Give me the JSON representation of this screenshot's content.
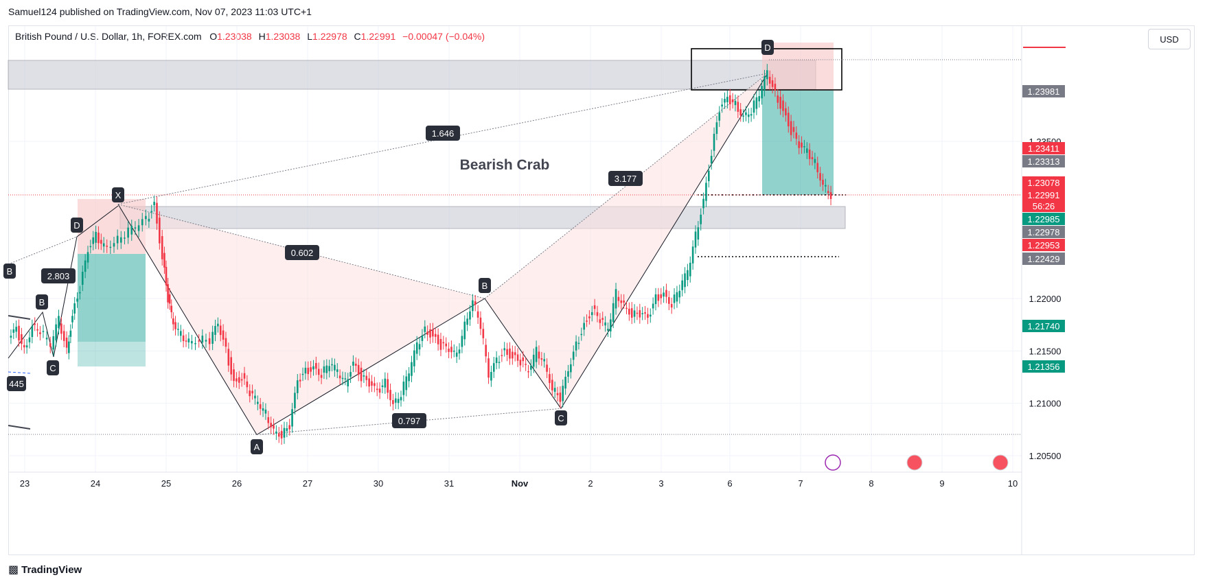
{
  "header": {
    "published": "Samuel124 published on TradingView.com, Nov 07, 2023 11:03 UTC+1"
  },
  "symbol_line": {
    "title": "British Pound / U.S. Dollar, 1h, FOREX.com",
    "o_label": "O",
    "o_value": "1.23038",
    "h_label": "H",
    "h_value": "1.23038",
    "l_label": "L",
    "l_value": "1.22978",
    "c_label": "C",
    "c_value": "1.22991",
    "change": "−0.00047 (−0.04%)"
  },
  "currency_button": "USD",
  "footer": {
    "brand": "TradingView"
  },
  "colors": {
    "up": "#089981",
    "down": "#f23645",
    "pattern": "#fde0e0",
    "zone": "#d1d4dc"
  },
  "chart_data": {
    "type": "candlestick",
    "title": "Bearish Crab",
    "y_range": [
      1.2,
      1.25
    ],
    "y_ticks": [
      "1.20500",
      "1.21000",
      "1.21500",
      "1.22000",
      "1.23500"
    ],
    "x_tick_labels": [
      "23",
      "24",
      "25",
      "26",
      "27",
      "30",
      "31",
      "Nov",
      "2",
      "3",
      "6",
      "7",
      "8",
      "9",
      "10"
    ],
    "price_labels": [
      {
        "text": "1.23981",
        "value": 1.23981,
        "color": "#787b86"
      },
      {
        "text": "1.23411",
        "value": 1.23411,
        "color": "#f23645"
      },
      {
        "text": "1.23313",
        "value": 1.23313,
        "color": "#787b86"
      },
      {
        "text": "1.23078",
        "value": 1.23078,
        "color": "#f23645"
      },
      {
        "text": "1.22991",
        "value": 1.22991,
        "color": "#f23645"
      },
      {
        "text": "1.22985",
        "value": 1.22985,
        "color": "#089981"
      },
      {
        "text": "1.22978",
        "value": 1.22978,
        "color": "#787b86"
      },
      {
        "text": "1.22953",
        "value": 1.22953,
        "color": "#f23645"
      },
      {
        "text": "1.22429",
        "value": 1.22429,
        "color": "#787b86"
      },
      {
        "text": "1.21740",
        "value": 1.2174,
        "color": "#089981"
      },
      {
        "text": "1.21356",
        "value": 1.21356,
        "color": "#089981"
      }
    ],
    "countdown": "56:26",
    "pattern_points": [
      {
        "label": "X",
        "day": "24",
        "price": 1.229
      },
      {
        "label": "A",
        "day": "26",
        "price": 1.207
      },
      {
        "label": "B",
        "day": "31",
        "price": 1.22
      },
      {
        "label": "C",
        "day": "Nov",
        "price": 1.2095
      },
      {
        "label": "D",
        "day": "6",
        "price": 1.2415
      }
    ],
    "ratios": [
      "1.646",
      "0.602",
      "3.177",
      "0.797",
      "2.803"
    ],
    "left_pattern_labels": [
      "D",
      "B",
      "C",
      "B",
      "445"
    ],
    "price_path": [
      [
        0,
        1.216
      ],
      [
        6,
        1.217
      ],
      [
        12,
        1.215
      ],
      [
        18,
        1.2175
      ],
      [
        24,
        1.217
      ],
      [
        32,
        1.2155
      ],
      [
        38,
        1.218
      ],
      [
        44,
        1.215
      ],
      [
        48,
        1.2185
      ],
      [
        54,
        1.221
      ],
      [
        60,
        1.2245
      ],
      [
        66,
        1.226
      ],
      [
        72,
        1.225
      ],
      [
        80,
        1.2255
      ],
      [
        88,
        1.2262
      ],
      [
        96,
        1.2268
      ],
      [
        104,
        1.2275
      ],
      [
        110,
        1.229
      ],
      [
        116,
        1.224
      ],
      [
        120,
        1.22
      ],
      [
        124,
        1.2175
      ],
      [
        130,
        1.2165
      ],
      [
        136,
        1.216
      ],
      [
        144,
        1.2162
      ],
      [
        152,
        1.216
      ],
      [
        158,
        1.2175
      ],
      [
        164,
        1.215
      ],
      [
        170,
        1.212
      ],
      [
        176,
        1.2125
      ],
      [
        182,
        1.211
      ],
      [
        188,
        1.21
      ],
      [
        194,
        1.209
      ],
      [
        200,
        1.2075
      ],
      [
        206,
        1.207
      ],
      [
        212,
        1.2078
      ],
      [
        218,
        1.212
      ],
      [
        224,
        1.213
      ],
      [
        230,
        1.2135
      ],
      [
        236,
        1.2128
      ],
      [
        242,
        1.2138
      ],
      [
        248,
        1.213
      ],
      [
        254,
        1.212
      ],
      [
        260,
        1.214
      ],
      [
        266,
        1.2125
      ],
      [
        272,
        1.2118
      ],
      [
        278,
        1.211
      ],
      [
        284,
        1.212
      ],
      [
        290,
        1.21
      ],
      [
        296,
        1.211
      ],
      [
        302,
        1.213
      ],
      [
        308,
        1.2155
      ],
      [
        314,
        1.217
      ],
      [
        320,
        1.2165
      ],
      [
        326,
        1.2155
      ],
      [
        332,
        1.215
      ],
      [
        338,
        1.2145
      ],
      [
        344,
        1.2175
      ],
      [
        350,
        1.22
      ],
      [
        356,
        1.2175
      ],
      [
        362,
        1.2125
      ],
      [
        368,
        1.214
      ],
      [
        374,
        1.215
      ],
      [
        380,
        1.2145
      ],
      [
        386,
        1.214
      ],
      [
        392,
        1.213
      ],
      [
        398,
        1.215
      ],
      [
        404,
        1.214
      ],
      [
        410,
        1.2115
      ],
      [
        416,
        1.2105
      ],
      [
        422,
        1.213
      ],
      [
        428,
        1.2155
      ],
      [
        434,
        1.2175
      ],
      [
        440,
        1.219
      ],
      [
        446,
        1.218
      ],
      [
        452,
        1.217
      ],
      [
        458,
        1.2205
      ],
      [
        464,
        1.2195
      ],
      [
        470,
        1.2185
      ],
      [
        476,
        1.2185
      ],
      [
        482,
        1.218
      ],
      [
        488,
        1.22
      ],
      [
        494,
        1.2205
      ],
      [
        500,
        1.2195
      ],
      [
        506,
        1.221
      ],
      [
        512,
        1.2225
      ],
      [
        518,
        1.226
      ],
      [
        524,
        1.2295
      ],
      [
        530,
        1.234
      ],
      [
        536,
        1.238
      ],
      [
        542,
        1.239
      ],
      [
        548,
        1.2385
      ],
      [
        554,
        1.2375
      ],
      [
        560,
        1.238
      ],
      [
        566,
        1.2395
      ],
      [
        572,
        1.2415
      ],
      [
        578,
        1.2395
      ],
      [
        584,
        1.238
      ],
      [
        590,
        1.236
      ],
      [
        596,
        1.2345
      ],
      [
        602,
        1.234
      ],
      [
        608,
        1.233
      ],
      [
        614,
        1.231
      ],
      [
        620,
        1.2299
      ]
    ]
  }
}
